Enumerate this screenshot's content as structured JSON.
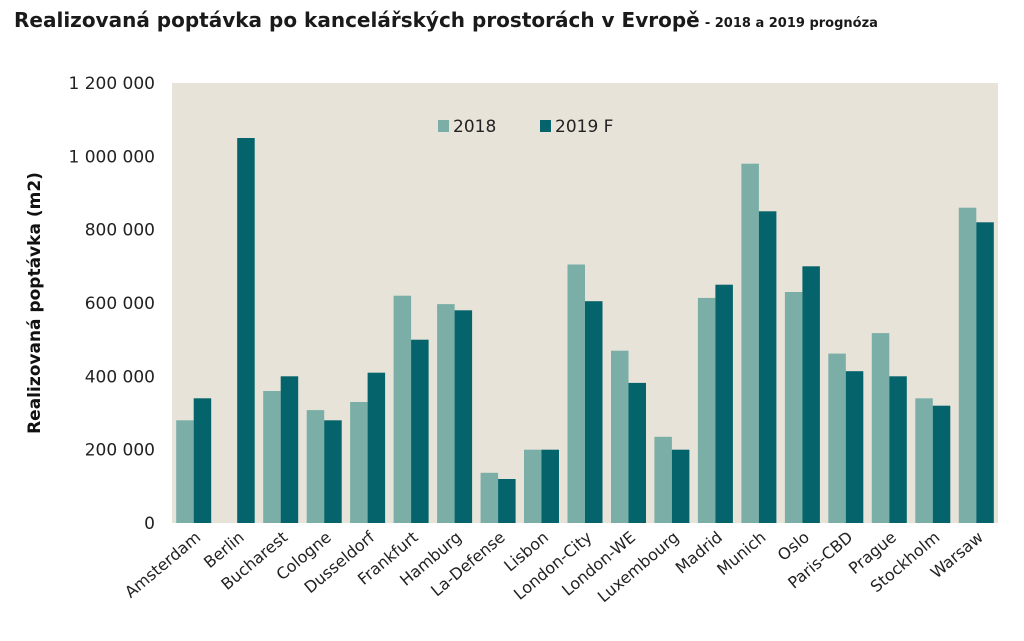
{
  "chart_data": {
    "type": "bar",
    "title": "Realizovaná poptávka po kancelářských prostorách v Evropě",
    "subtitle": "- 2018 a 2019 prognóza",
    "ylabel": "Realizovaná poptávka (m2)",
    "ylim": [
      0,
      1200000
    ],
    "yticks": [
      0,
      200000,
      400000,
      600000,
      800000,
      1000000,
      1200000
    ],
    "ytick_labels": [
      "0",
      "200 000",
      "400 000",
      "600 000",
      "800 000",
      "1 000 000",
      "1 200 000"
    ],
    "grid": false,
    "legend_position": "top-center",
    "background_color": "#e8e3d9",
    "categories": [
      "Amsterdam",
      "Berlin",
      "Bucharest",
      "Cologne",
      "Dusseldorf",
      "Frankfurt",
      "Hamburg",
      "La-Defense",
      "Lisbon",
      "London-City",
      "London-WE",
      "Luxembourg",
      "Madrid",
      "Munich",
      "Oslo",
      "Paris-CBD",
      "Prague",
      "Stockholm",
      "Warsaw"
    ],
    "series": [
      {
        "name": "2018",
        "color": "#7aaea6",
        "values": [
          280000,
          null,
          360000,
          308000,
          330000,
          620000,
          597000,
          137000,
          200000,
          705000,
          470000,
          235000,
          614000,
          980000,
          630000,
          462000,
          518000,
          340000,
          860000
        ]
      },
      {
        "name": "2019 F",
        "color": "#04636b",
        "values": [
          340000,
          1050000,
          400000,
          280000,
          410000,
          500000,
          580000,
          120000,
          200000,
          605000,
          382000,
          200000,
          650000,
          850000,
          700000,
          414000,
          400000,
          320000,
          820000
        ]
      }
    ]
  }
}
